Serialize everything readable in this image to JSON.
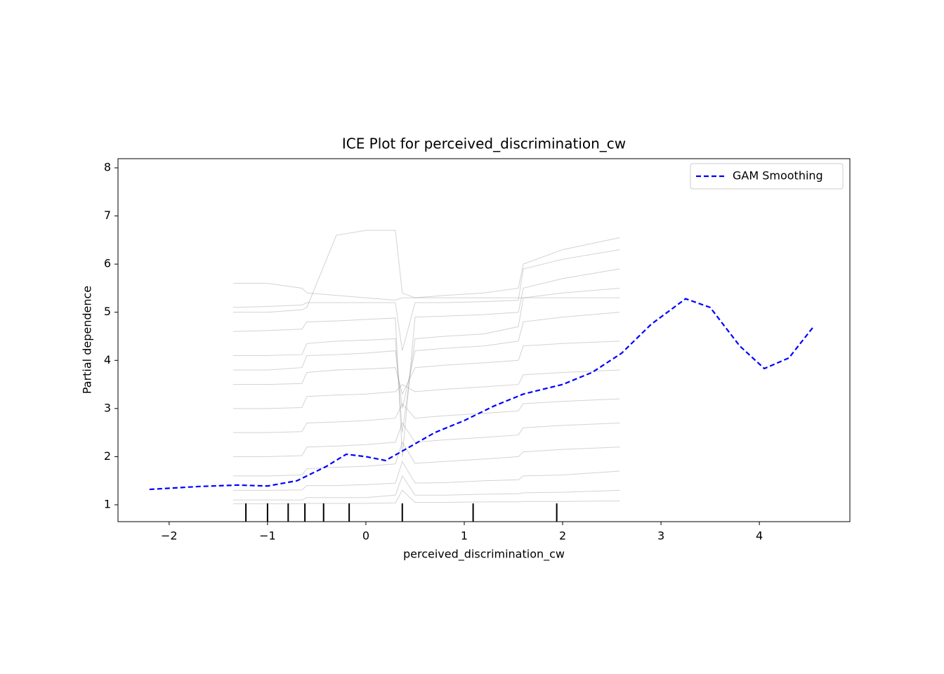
{
  "chart_data": {
    "type": "line",
    "title": "ICE Plot for perceived_discrimination_cw",
    "x_label": "perceived_discrimination_cw",
    "y_label": "Partial dependence",
    "xlim": [
      -2.52,
      4.92
    ],
    "ylim": [
      0.65,
      8.19
    ],
    "xticks": [
      {
        "value": -2,
        "label": "−2"
      },
      {
        "value": -1,
        "label": "−1"
      },
      0,
      1,
      2,
      3,
      4
    ],
    "yticks": [
      1,
      2,
      3,
      4,
      5,
      6,
      7,
      8
    ],
    "legend": "upper right",
    "ice_opacity": 0.35,
    "rug": [
      -1.22,
      -1.0,
      -0.79,
      -0.62,
      -0.43,
      -0.17,
      0.37,
      1.09,
      1.94
    ],
    "rug_color": "#000000",
    "series": [
      {
        "name": "GAM Smoothing",
        "color": "#0000ff",
        "dashed": true,
        "x": [
          -2.2,
          -1.7,
          -1.3,
          -1.0,
          -0.7,
          -0.4,
          -0.2,
          0,
          0.2,
          0.4,
          0.7,
          1.0,
          1.3,
          1.6,
          2.0,
          2.3,
          2.6,
          2.9,
          3.25,
          3.5,
          3.8,
          4.05,
          4.3,
          4.55
        ],
        "values": [
          1.32,
          1.38,
          1.41,
          1.39,
          1.5,
          1.8,
          2.05,
          2.0,
          1.92,
          2.15,
          2.5,
          2.75,
          3.05,
          3.3,
          3.5,
          3.75,
          4.15,
          4.75,
          5.28,
          5.1,
          4.3,
          3.83,
          4.05,
          4.7
        ]
      },
      {
        "color": "#808080",
        "x": [
          -1.35,
          -1.0,
          -0.65,
          -0.6,
          -0.3,
          0,
          0.3,
          0.37,
          0.5,
          0.8,
          1.2,
          1.55,
          1.6,
          2.0,
          2.58
        ],
        "values": [
          1.02,
          1.02,
          1.02,
          1.03,
          1.03,
          1.03,
          1.04,
          1.3,
          1.05,
          1.05,
          1.06,
          1.06,
          1.07,
          1.07,
          1.08
        ]
      },
      {
        "color": "#808080",
        "x": [
          -1.35,
          -1.0,
          -0.65,
          -0.6,
          -0.3,
          0,
          0.3,
          0.37,
          0.5,
          0.8,
          1.2,
          1.55,
          1.6,
          2.0,
          2.58
        ],
        "values": [
          1.1,
          1.1,
          1.1,
          1.15,
          1.15,
          1.15,
          1.2,
          1.6,
          1.2,
          1.2,
          1.22,
          1.23,
          1.25,
          1.26,
          1.3
        ]
      },
      {
        "color": "#808080",
        "x": [
          -1.35,
          -1.0,
          -0.65,
          -0.6,
          -0.3,
          0,
          0.3,
          0.37,
          0.5,
          0.8,
          1.2,
          1.55,
          1.6,
          2.0,
          2.58
        ],
        "values": [
          1.3,
          1.3,
          1.31,
          1.4,
          1.4,
          1.42,
          1.45,
          1.9,
          1.45,
          1.46,
          1.5,
          1.52,
          1.6,
          1.62,
          1.7
        ]
      },
      {
        "color": "#808080",
        "x": [
          -1.35,
          -1.0,
          -0.65,
          -0.6,
          -0.3,
          0,
          0.3,
          0.37,
          0.5,
          0.8,
          1.2,
          1.55,
          1.6,
          2.0,
          2.58
        ],
        "values": [
          1.6,
          1.6,
          1.62,
          1.75,
          1.78,
          1.8,
          1.85,
          2.3,
          1.86,
          1.9,
          1.95,
          2.0,
          2.1,
          2.15,
          2.2
        ]
      },
      {
        "color": "#808080",
        "x": [
          -1.35,
          -1.0,
          -0.65,
          -0.6,
          -0.3,
          0,
          0.3,
          0.37,
          0.5,
          0.8,
          1.2,
          1.55,
          1.6,
          2.0,
          2.58
        ],
        "values": [
          2.0,
          2.0,
          2.02,
          2.2,
          2.22,
          2.25,
          2.3,
          2.7,
          2.3,
          2.35,
          2.4,
          2.45,
          2.6,
          2.65,
          2.7
        ]
      },
      {
        "color": "#808080",
        "x": [
          -1.35,
          -1.0,
          -0.65,
          -0.6,
          -0.3,
          0,
          0.3,
          0.37,
          0.5,
          0.8,
          1.2,
          1.55,
          1.6,
          2.0,
          2.58
        ],
        "values": [
          2.5,
          2.5,
          2.52,
          2.7,
          2.72,
          2.75,
          2.8,
          3.1,
          2.8,
          2.85,
          2.9,
          2.95,
          3.1,
          3.15,
          3.2
        ]
      },
      {
        "color": "#808080",
        "x": [
          -1.35,
          -1.0,
          -0.65,
          -0.6,
          -0.3,
          0,
          0.3,
          0.37,
          0.5,
          0.8,
          1.2,
          1.55,
          1.6,
          2.0,
          2.58
        ],
        "values": [
          3.0,
          3.0,
          3.02,
          3.25,
          3.28,
          3.3,
          3.35,
          3.5,
          3.35,
          3.4,
          3.45,
          3.5,
          3.7,
          3.75,
          3.8
        ]
      },
      {
        "color": "#808080",
        "x": [
          -1.35,
          -1.0,
          -0.65,
          -0.6,
          -0.3,
          0,
          0.3,
          0.37,
          0.5,
          0.8,
          1.2,
          1.55,
          1.6,
          2.0,
          2.58
        ],
        "values": [
          3.5,
          3.5,
          3.52,
          3.75,
          3.8,
          3.82,
          3.85,
          3.3,
          3.85,
          3.9,
          3.95,
          4.0,
          4.3,
          4.35,
          4.4
        ]
      },
      {
        "color": "#808080",
        "x": [
          -1.35,
          -1.0,
          -0.65,
          -0.6,
          -0.3,
          0,
          0.3,
          0.37,
          0.5,
          0.8,
          1.2,
          1.55,
          1.6,
          2.0,
          2.58
        ],
        "values": [
          3.8,
          3.8,
          3.85,
          4.1,
          4.12,
          4.15,
          4.2,
          3.0,
          4.2,
          4.25,
          4.3,
          4.4,
          4.8,
          4.9,
          5.0
        ]
      },
      {
        "color": "#808080",
        "x": [
          -1.35,
          -1.0,
          -0.65,
          -0.6,
          -0.3,
          0,
          0.3,
          0.37,
          0.5,
          0.8,
          1.2,
          1.55,
          1.6,
          2.0,
          2.58
        ],
        "values": [
          4.1,
          4.1,
          4.12,
          4.35,
          4.4,
          4.42,
          4.45,
          2.5,
          4.45,
          4.5,
          4.55,
          4.7,
          5.3,
          5.4,
          5.5
        ]
      },
      {
        "color": "#808080",
        "x": [
          -1.35,
          -1.0,
          -0.65,
          -0.6,
          -0.3,
          0,
          0.3,
          0.37,
          0.5,
          0.8,
          1.2,
          1.55,
          1.6,
          2.0,
          2.58
        ],
        "values": [
          4.6,
          4.62,
          4.65,
          4.8,
          4.82,
          4.85,
          4.88,
          2.0,
          4.9,
          4.92,
          4.95,
          5.0,
          5.5,
          5.7,
          5.9
        ]
      },
      {
        "color": "#808080",
        "x": [
          -1.35,
          -1.0,
          -0.65,
          -0.6,
          -0.3,
          0,
          0.3,
          0.37,
          0.5,
          0.8,
          1.2,
          1.55,
          1.6,
          2.0,
          2.58
        ],
        "values": [
          5.1,
          5.12,
          5.15,
          5.2,
          5.2,
          5.2,
          5.2,
          4.2,
          5.2,
          5.2,
          5.22,
          5.25,
          5.9,
          6.1,
          6.3
        ]
      },
      {
        "color": "#808080",
        "x": [
          -1.35,
          -1.0,
          -0.65,
          -0.6,
          -0.3,
          0,
          0.3,
          0.37,
          0.5,
          0.8,
          1.2,
          1.55,
          1.6,
          2.0,
          2.58
        ],
        "values": [
          5.6,
          5.6,
          5.5,
          5.4,
          5.35,
          5.3,
          5.25,
          5.3,
          5.3,
          5.35,
          5.4,
          5.5,
          6.0,
          6.3,
          6.55
        ]
      },
      {
        "color": "#808080",
        "x": [
          -1.35,
          -1.0,
          -0.65,
          -0.6,
          -0.3,
          0,
          0.3,
          0.37,
          0.5,
          0.8,
          1.2,
          1.55,
          1.6,
          2.0,
          2.58
        ],
        "values": [
          5.0,
          5.0,
          5.05,
          5.1,
          6.6,
          6.7,
          6.7,
          5.4,
          5.3,
          5.3,
          5.3,
          5.3,
          5.3,
          5.3,
          5.3
        ]
      }
    ]
  }
}
